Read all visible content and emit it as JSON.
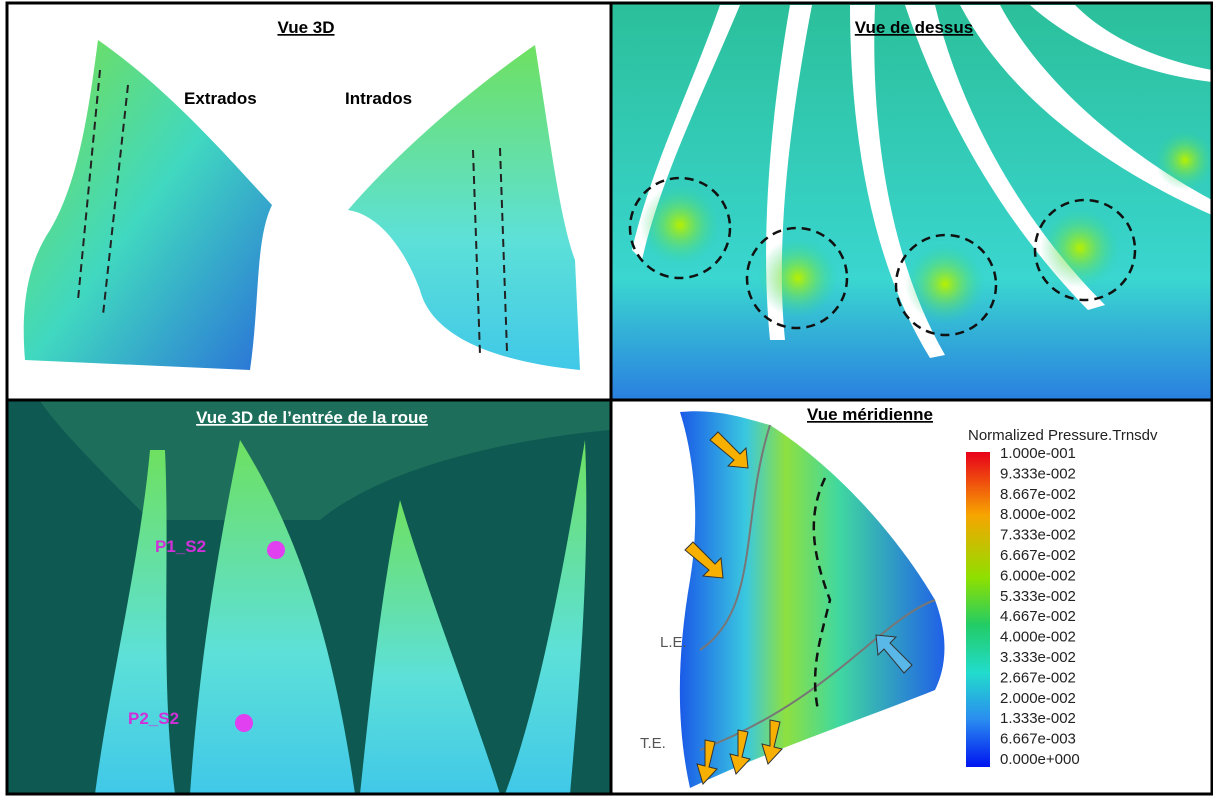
{
  "panels": [
    {
      "title": "Vue 3D",
      "labels": [
        "Extrados",
        "Intrados"
      ]
    },
    {
      "title": "Vue de dessus"
    },
    {
      "title": "Vue 3D de l’entrée de la roue",
      "labels": [
        "P1_S2",
        "P2_S2"
      ]
    },
    {
      "title": "Vue méridienne",
      "labels": [
        "L.E.",
        "T.E."
      ]
    }
  ],
  "colorbar": {
    "title": "Normalized Pressure.Trnsdv",
    "labels": [
      "1.000e-001",
      "9.333e-002",
      "8.667e-002",
      "8.000e-002",
      "7.333e-002",
      "6.667e-002",
      "6.000e-002",
      "5.333e-002",
      "4.667e-002",
      "4.000e-002",
      "3.333e-002",
      "2.667e-002",
      "2.000e-002",
      "1.333e-002",
      "6.667e-003",
      "0.000e+000"
    ]
  }
}
